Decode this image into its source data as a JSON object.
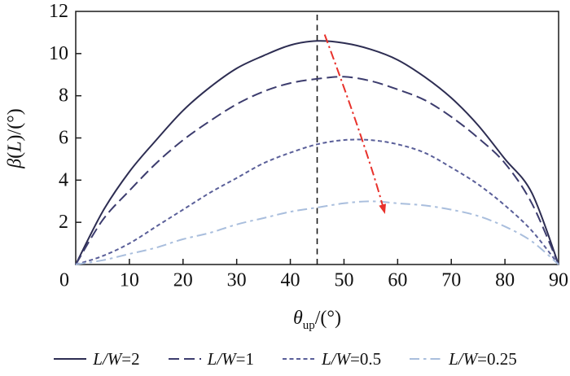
{
  "figure": {
    "background": "#ffffff"
  },
  "chart_data": {
    "type": "line",
    "title": "",
    "xlabel": "θ_up/(°)",
    "ylabel": "β(L)/(°)",
    "xlim": [
      0,
      90
    ],
    "ylim": [
      0,
      12
    ],
    "x_ticks": [
      0,
      10,
      20,
      30,
      40,
      50,
      60,
      70,
      80,
      90
    ],
    "y_ticks": [
      0,
      2,
      4,
      6,
      8,
      10,
      12
    ],
    "grid": false,
    "legend_position": "bottom",
    "axis_color": "#1a1a1a",
    "x": [
      0,
      5,
      10,
      15,
      20,
      25,
      30,
      35,
      40,
      45,
      50,
      55,
      60,
      65,
      70,
      75,
      80,
      85,
      90
    ],
    "series": [
      {
        "key": "lw-2",
        "name": "L/W=2",
        "color": "#2d2d52",
        "line_style": "solid",
        "label_parts": [
          {
            "t": "L/W",
            "i": true
          },
          {
            "t": "=2"
          }
        ],
        "values": [
          0,
          2.5,
          4.4,
          5.9,
          7.3,
          8.4,
          9.3,
          9.9,
          10.4,
          10.6,
          10.5,
          10.2,
          9.7,
          8.9,
          7.9,
          6.6,
          5.0,
          3.4,
          0
        ]
      },
      {
        "key": "lw-1",
        "name": "L/W=1",
        "color": "#3c3c6e",
        "line_style": "long-dash",
        "label_parts": [
          {
            "t": "L/W",
            "i": true
          },
          {
            "t": "=1"
          }
        ],
        "values": [
          0,
          2.1,
          3.5,
          4.8,
          5.9,
          6.8,
          7.6,
          8.2,
          8.6,
          8.8,
          8.9,
          8.7,
          8.3,
          7.8,
          7.0,
          6.0,
          4.8,
          2.9,
          0
        ]
      },
      {
        "key": "lw-0-5",
        "name": "L/W=0.5",
        "color": "#5a5f99",
        "line_style": "short-dash",
        "label_parts": [
          {
            "t": "L/W",
            "i": true
          },
          {
            "t": "=0.5"
          }
        ],
        "values": [
          0,
          0.4,
          1.0,
          1.8,
          2.6,
          3.4,
          4.1,
          4.8,
          5.3,
          5.7,
          5.9,
          5.9,
          5.7,
          5.3,
          4.6,
          3.8,
          2.8,
          1.6,
          0
        ]
      },
      {
        "key": "lw-0-25",
        "name": "L/W=0.25",
        "color": "#a9bedd",
        "line_style": "dash-dot",
        "label_parts": [
          {
            "t": "L/W",
            "i": true
          },
          {
            "t": "=0.25"
          }
        ],
        "values": [
          0,
          0.2,
          0.5,
          0.8,
          1.2,
          1.5,
          1.9,
          2.2,
          2.5,
          2.7,
          2.9,
          3.0,
          2.9,
          2.8,
          2.6,
          2.3,
          1.8,
          1.1,
          0
        ]
      }
    ],
    "annotations": {
      "vline": {
        "x": 45,
        "style": "dashed",
        "color": "#1a1a1a"
      },
      "arrow": {
        "from_xy": [
          46.4,
          10.9
        ],
        "via_xy": [
          53.0,
          6.2
        ],
        "to_xy": [
          57.2,
          2.8
        ],
        "style": "dash-dot",
        "color": "#e8312b"
      }
    }
  },
  "labels": {
    "ylabel_parts": [
      {
        "t": "β",
        "i": true
      },
      {
        "t": "("
      },
      {
        "t": "L",
        "i": true
      },
      {
        "t": ")/(°)"
      }
    ],
    "xlabel_parts": [
      {
        "t": "θ",
        "i": true
      },
      {
        "t": "up",
        "sub": true
      },
      {
        "t": "/(°)"
      }
    ]
  }
}
